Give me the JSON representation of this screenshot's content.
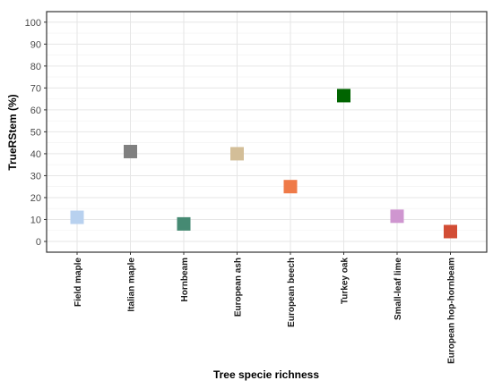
{
  "chart_data": {
    "type": "scatter",
    "title": "",
    "xlabel": "Tree specie richness",
    "ylabel": "TrueRStem (%)",
    "ylim": [
      0,
      100
    ],
    "yticks": [
      0,
      10,
      20,
      30,
      40,
      50,
      60,
      70,
      80,
      90,
      100
    ],
    "grid": true,
    "legend": "none",
    "categories": [
      "Field maple",
      "Italian maple",
      "Hornbeam",
      "European ash",
      "European beech",
      "Turkey oak",
      "Small-leaf lime",
      "European hop-hornbeam"
    ],
    "values": [
      11,
      41,
      8,
      40,
      25,
      66.5,
      11.5,
      4.5
    ],
    "colors": [
      "#b8d1ef",
      "#808080",
      "#468a73",
      "#d3be98",
      "#ef7a48",
      "#006400",
      "#cf96d0",
      "#d24d35"
    ]
  }
}
